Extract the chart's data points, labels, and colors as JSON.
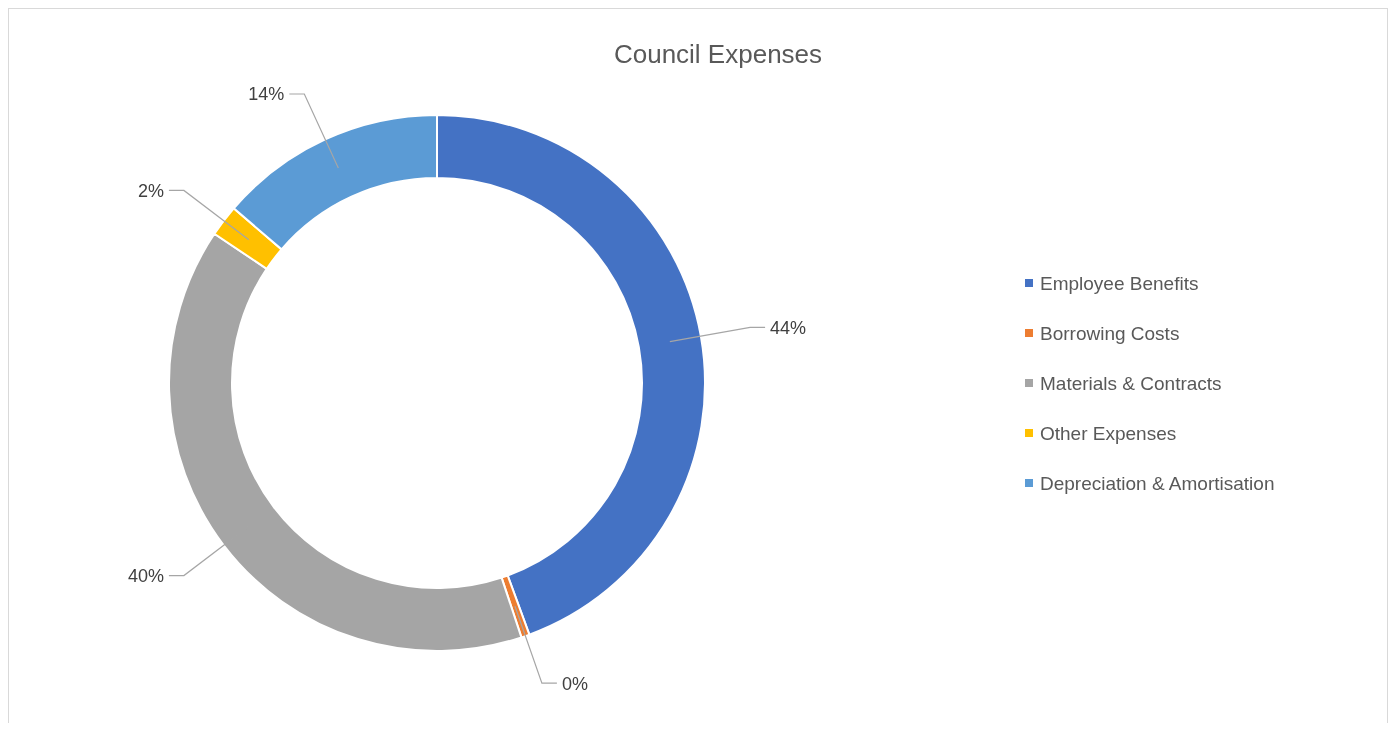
{
  "chart_data": {
    "type": "donut",
    "title": "Council Expenses",
    "categories": [
      "Employee Benefits",
      "Borrowing Costs",
      "Materials & Contracts",
      "Other Expenses",
      "Depreciation & Amortisation"
    ],
    "values": [
      44.4,
      0.5,
      39.5,
      1.9,
      13.7
    ],
    "value_labels": [
      "44%",
      "0%",
      "40%",
      "2%",
      "14%"
    ],
    "colors": [
      "#4472c4",
      "#ed7d31",
      "#a5a5a5",
      "#ffc000",
      "#5b9bd5"
    ],
    "legend": "right"
  }
}
